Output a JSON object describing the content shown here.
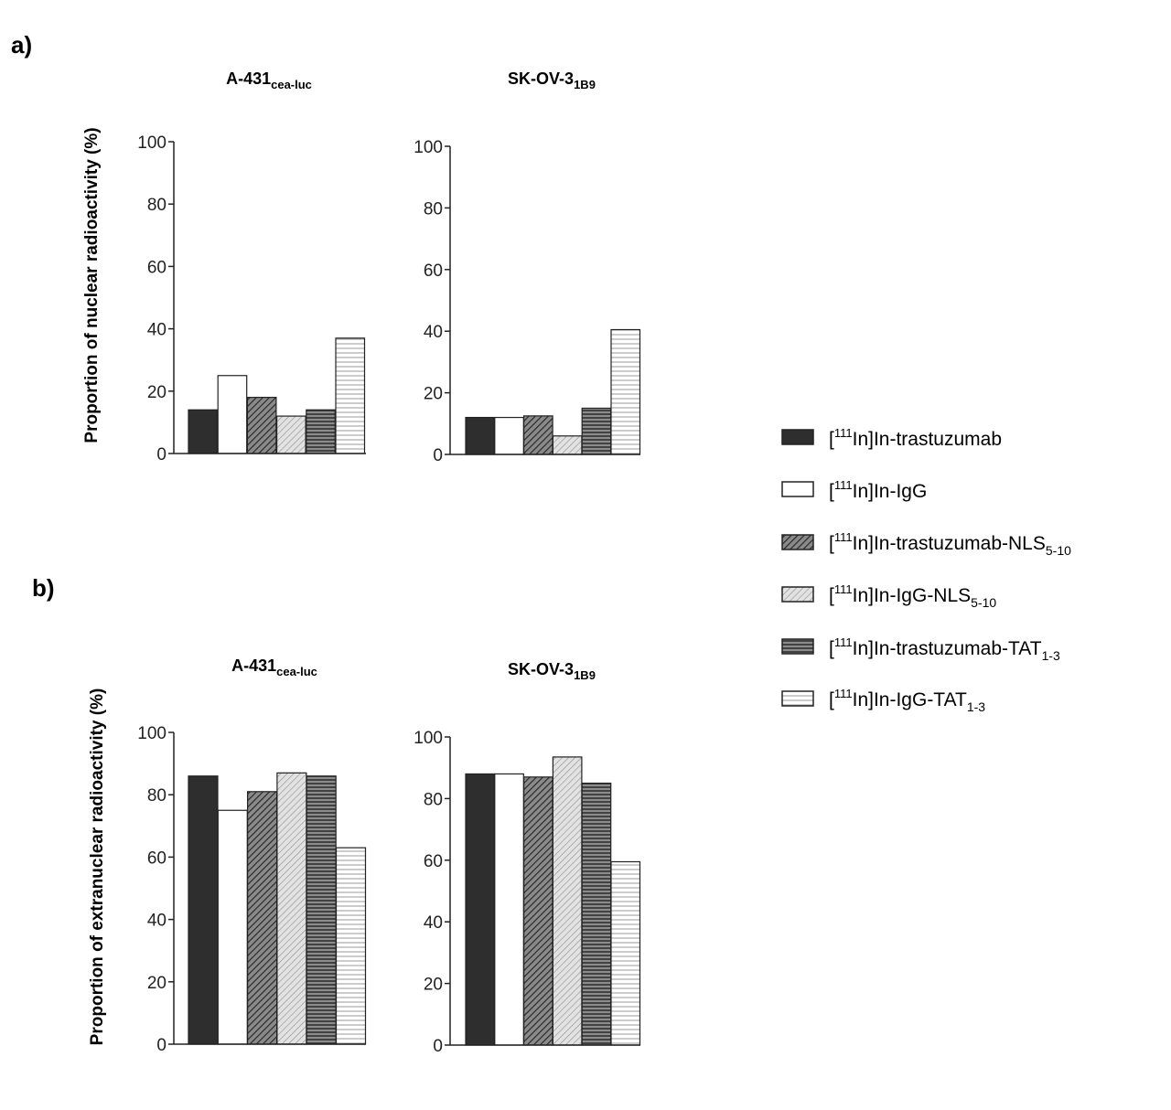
{
  "figure": {
    "panel_a_label": "a)",
    "panel_b_label": "b)",
    "colors": {
      "dark": "#2e2e2e",
      "white": "#ffffff",
      "hatch_dark_bg": "#8a8a8a",
      "hatch_dark_line": "#2a2a2a",
      "hatch_light_bg": "#e2e2e2",
      "hatch_light_line": "#8e8e8e",
      "stripe_dark_bg": "#8c8c8c",
      "stripe_dark_line": "#3a3a3a",
      "stripe_light_bg": "#ffffff",
      "stripe_light_line": "#9a9a9a",
      "axis": "#222222"
    }
  },
  "legend": {
    "items": [
      {
        "pre": "[",
        "sup": "111",
        "main": "In]In-trastuzumab",
        "sub": "",
        "pattern": "solid-dark"
      },
      {
        "pre": "[",
        "sup": "111",
        "main": "In]In-IgG",
        "sub": "",
        "pattern": "white"
      },
      {
        "pre": "[",
        "sup": "111",
        "main": "In]In-trastuzumab-NLS",
        "sub": "5-10",
        "pattern": "hatch-dark"
      },
      {
        "pre": "[",
        "sup": "111",
        "main": "In]In-IgG-NLS",
        "sub": "5-10",
        "pattern": "hatch-light"
      },
      {
        "pre": "[",
        "sup": "111",
        "main": "In]In-trastuzumab-TAT",
        "sub": "1-3",
        "pattern": "stripe-dark"
      },
      {
        "pre": "[",
        "sup": "111",
        "main": "In]In-IgG-TAT",
        "sub": "1-3",
        "pattern": "stripe-light"
      }
    ]
  },
  "chart_data": [
    {
      "panel": "a",
      "type": "bar",
      "title": "A-431",
      "title_sub": "cea-luc",
      "ylabel": "Proportion of nuclear radioactivity (%)",
      "ylim": [
        0,
        100
      ],
      "yticks": [
        0,
        20,
        40,
        60,
        80,
        100
      ],
      "categories": [
        "[111In]In-trastuzumab",
        "[111In]In-IgG",
        "[111In]In-trastuzumab-NLS5-10",
        "[111In]In-IgG-NLS5-10",
        "[111In]In-trastuzumab-TAT1-3",
        "[111In]In-IgG-TAT1-3"
      ],
      "values": [
        14,
        25,
        18,
        12,
        14,
        37
      ]
    },
    {
      "panel": "a",
      "type": "bar",
      "title": "SK-OV-3",
      "title_sub": "1B9",
      "ylabel": "",
      "ylim": [
        0,
        100
      ],
      "yticks": [
        0,
        20,
        40,
        60,
        80,
        100
      ],
      "categories": [
        "[111In]In-trastuzumab",
        "[111In]In-IgG",
        "[111In]In-trastuzumab-NLS5-10",
        "[111In]In-IgG-NLS5-10",
        "[111In]In-trastuzumab-TAT1-3",
        "[111In]In-IgG-TAT1-3"
      ],
      "values": [
        12,
        12,
        12.5,
        6,
        15,
        40.5
      ]
    },
    {
      "panel": "b",
      "type": "bar",
      "title": "A-431",
      "title_sub": "cea-luc",
      "ylabel": "Proportion of extranuclear radioactivity (%)",
      "ylim": [
        0,
        100
      ],
      "yticks": [
        0,
        20,
        40,
        60,
        80,
        100
      ],
      "categories": [
        "[111In]In-trastuzumab",
        "[111In]In-IgG",
        "[111In]In-trastuzumab-NLS5-10",
        "[111In]In-IgG-NLS5-10",
        "[111In]In-trastuzumab-TAT1-3",
        "[111In]In-IgG-TAT1-3"
      ],
      "values": [
        86,
        75,
        81,
        87,
        86,
        63
      ]
    },
    {
      "panel": "b",
      "type": "bar",
      "title": "SK-OV-3",
      "title_sub": "1B9",
      "ylabel": "",
      "ylim": [
        0,
        100
      ],
      "yticks": [
        0,
        20,
        40,
        60,
        80,
        100
      ],
      "categories": [
        "[111In]In-trastuzumab",
        "[111In]In-IgG",
        "[111In]In-trastuzumab-NLS5-10",
        "[111In]In-IgG-NLS5-10",
        "[111In]In-trastuzumab-TAT1-3",
        "[111In]In-IgG-TAT1-3"
      ],
      "values": [
        88,
        88,
        87,
        93.5,
        85,
        59.5
      ]
    }
  ]
}
